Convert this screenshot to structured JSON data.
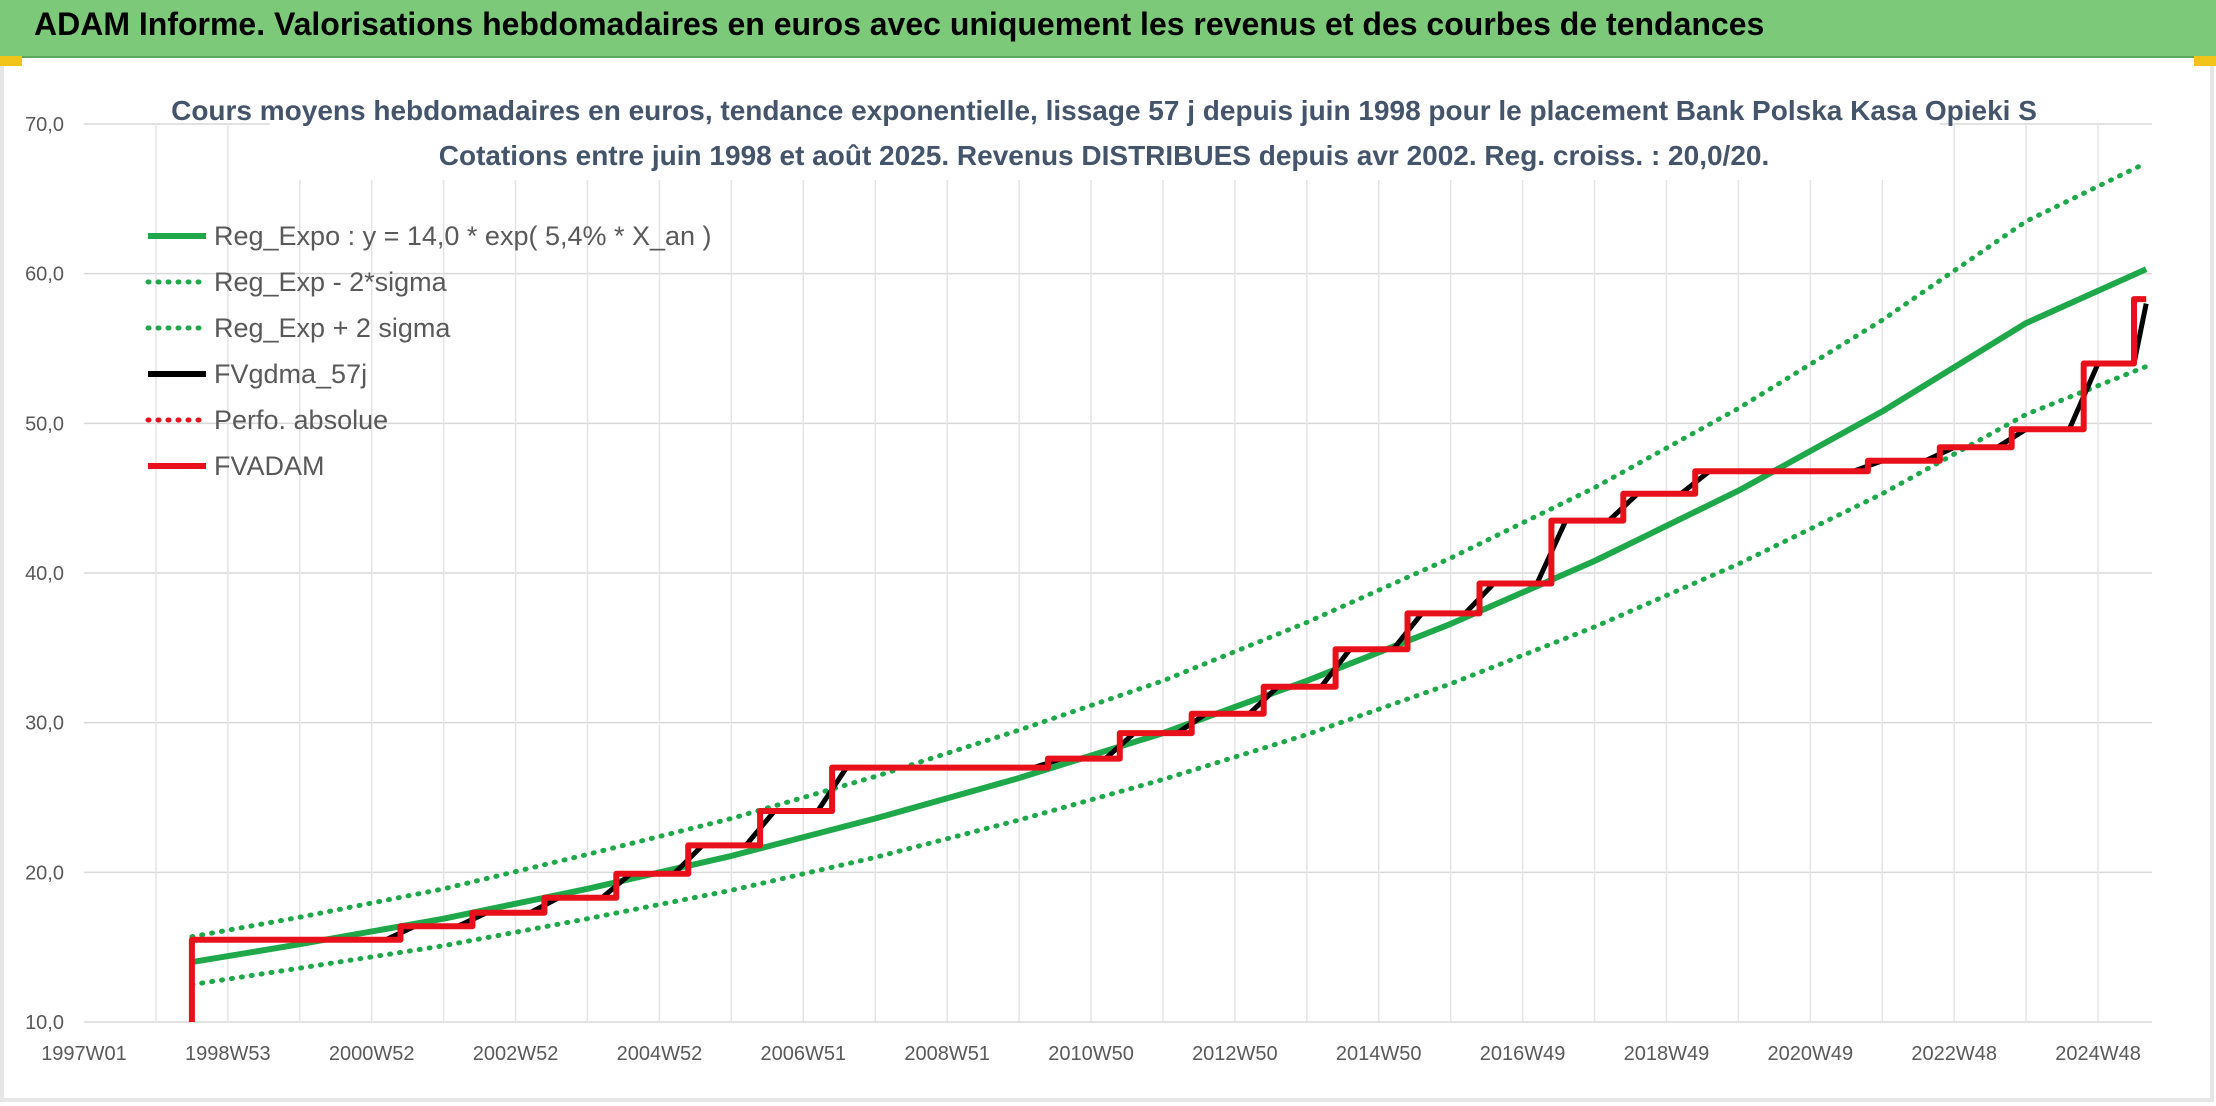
{
  "header": {
    "title": "ADAM Informe. Valorisations hebdomadaires en euros avec uniquement les revenus et des courbes de tendances"
  },
  "chart_data": {
    "type": "line",
    "title": "Cours moyens hebdomadaires en euros, tendance exponentielle, lissage 57 j depuis juin 1998 pour le placement Bank Polska Kasa Opieki S",
    "subtitle": "Cotations entre juin 1998 et août 2025. Revenus DISTRIBUES depuis avr 2002. Reg. croiss. : 20,0/20.",
    "xlabel": "",
    "ylabel": "",
    "ylim": [
      10,
      70
    ],
    "y_ticks": [
      "10,0",
      "20,0",
      "30,0",
      "40,0",
      "50,0",
      "60,0",
      "70,0"
    ],
    "x_range": [
      1997.0,
      2025.75
    ],
    "x_ticks": [
      {
        "label": "1997W01",
        "x": 1997.0
      },
      {
        "label": "1998W53",
        "x": 1999.0
      },
      {
        "label": "2000W52",
        "x": 2001.0
      },
      {
        "label": "2002W52",
        "x": 2003.0
      },
      {
        "label": "2004W52",
        "x": 2005.0
      },
      {
        "label": "2006W51",
        "x": 2007.0
      },
      {
        "label": "2008W51",
        "x": 2009.0
      },
      {
        "label": "2010W50",
        "x": 2011.0
      },
      {
        "label": "2012W50",
        "x": 2013.0
      },
      {
        "label": "2014W50",
        "x": 2015.0
      },
      {
        "label": "2016W49",
        "x": 2017.0
      },
      {
        "label": "2018W49",
        "x": 2019.0
      },
      {
        "label": "2020W49",
        "x": 2021.0
      },
      {
        "label": "2022W48",
        "x": 2023.0
      },
      {
        "label": "2024W48",
        "x": 2025.0
      }
    ],
    "grid": true,
    "legend_position": "top-left",
    "series": [
      {
        "name": "Reg_Expo : y = 14,0 * exp( 5,4% *  X_an )",
        "color": "#1ea84a",
        "style": "solid",
        "x": [
          1998.5,
          2000,
          2002,
          2004,
          2006,
          2008,
          2010,
          2012,
          2014,
          2016,
          2018,
          2020,
          2022,
          2024,
          2025.67
        ],
        "values": [
          14.0,
          15.2,
          16.9,
          18.9,
          21.1,
          23.6,
          26.3,
          29.3,
          32.8,
          36.6,
          40.8,
          45.5,
          50.8,
          56.7,
          60.3
        ]
      },
      {
        "name": "Reg_Exp - 2*sigma",
        "color": "#1ea84a",
        "style": "dotted",
        "x": [
          1998.5,
          2000,
          2002,
          2004,
          2006,
          2008,
          2010,
          2012,
          2014,
          2016,
          2018,
          2020,
          2022,
          2024,
          2025.67
        ],
        "values": [
          12.5,
          13.6,
          15.1,
          16.9,
          18.8,
          21.0,
          23.5,
          26.2,
          29.2,
          32.6,
          36.4,
          40.6,
          45.3,
          50.6,
          53.8
        ]
      },
      {
        "name": "Reg_Exp + 2 sigma",
        "color": "#1ea84a",
        "style": "dotted",
        "x": [
          1998.5,
          2000,
          2002,
          2004,
          2006,
          2008,
          2010,
          2012,
          2014,
          2016,
          2018,
          2020,
          2022,
          2024,
          2025.67
        ],
        "values": [
          15.7,
          17.0,
          18.9,
          21.2,
          23.6,
          26.4,
          29.5,
          32.8,
          36.7,
          41.0,
          45.7,
          51.0,
          56.9,
          63.5,
          67.4
        ]
      },
      {
        "name": "FVgdma_57j",
        "color": "#000000",
        "style": "solid",
        "x": [
          1998.5,
          2001.2,
          2001.6,
          2002.2,
          2002.6,
          2003.2,
          2003.6,
          2004.2,
          2004.6,
          2005.2,
          2005.6,
          2006.2,
          2006.6,
          2007.2,
          2007.6,
          2008.2,
          2008.6,
          2010.2,
          2010.6,
          2011.2,
          2011.6,
          2012.2,
          2012.6,
          2013.2,
          2013.6,
          2014.2,
          2014.6,
          2015.2,
          2015.6,
          2016.2,
          2016.6,
          2017.2,
          2017.6,
          2018.2,
          2018.6,
          2019.2,
          2019.6,
          2021.6,
          2022.0,
          2022.6,
          2023.0,
          2023.6,
          2024.0,
          2024.6,
          2025.0,
          2025.5,
          2025.67
        ],
        "values": [
          15.5,
          15.5,
          16.4,
          16.4,
          17.3,
          17.3,
          18.3,
          18.3,
          19.9,
          19.9,
          21.8,
          21.8,
          24.1,
          24.1,
          27.0,
          27.0,
          27.0,
          27.0,
          27.6,
          27.6,
          29.3,
          29.3,
          30.6,
          30.6,
          32.4,
          32.4,
          34.9,
          34.9,
          37.3,
          37.3,
          39.3,
          39.3,
          43.5,
          43.5,
          45.3,
          45.3,
          46.8,
          46.8,
          47.5,
          47.5,
          48.4,
          48.4,
          49.6,
          49.6,
          54.0,
          54.0,
          58.0
        ]
      },
      {
        "name": "Perfo. absolue",
        "color": "#e8101a",
        "style": "dotted",
        "x": [],
        "values": []
      },
      {
        "name": "FVADAM",
        "color": "#e8101a",
        "style": "solid",
        "x": [
          1998.5,
          1998.5,
          2001.4,
          2001.4,
          2002.4,
          2002.4,
          2003.4,
          2003.4,
          2004.4,
          2004.4,
          2005.4,
          2005.4,
          2006.4,
          2006.4,
          2007.4,
          2007.4,
          2008.4,
          2008.4,
          2010.4,
          2010.4,
          2011.4,
          2011.4,
          2012.4,
          2012.4,
          2013.4,
          2013.4,
          2014.4,
          2014.4,
          2015.4,
          2015.4,
          2016.4,
          2016.4,
          2017.4,
          2017.4,
          2018.4,
          2018.4,
          2019.4,
          2019.4,
          2021.8,
          2021.8,
          2022.8,
          2022.8,
          2023.8,
          2023.8,
          2024.8,
          2024.8,
          2025.5,
          2025.5,
          2025.67
        ],
        "values": [
          10.0,
          15.5,
          15.5,
          16.4,
          16.4,
          17.3,
          17.3,
          18.3,
          18.3,
          19.9,
          19.9,
          21.8,
          21.8,
          24.1,
          24.1,
          27.0,
          27.0,
          27.0,
          27.0,
          27.6,
          27.6,
          29.3,
          29.3,
          30.6,
          30.6,
          32.4,
          32.4,
          34.9,
          34.9,
          37.3,
          37.3,
          39.3,
          39.3,
          43.5,
          43.5,
          45.3,
          45.3,
          46.8,
          46.8,
          47.5,
          47.5,
          48.4,
          48.4,
          49.6,
          49.6,
          54.0,
          54.0,
          58.3,
          58.3
        ]
      }
    ]
  }
}
